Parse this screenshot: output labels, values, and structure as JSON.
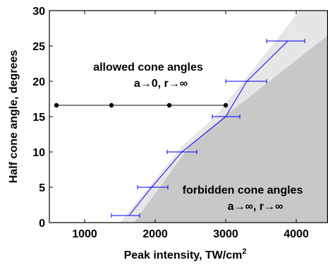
{
  "chart_data": {
    "type": "line",
    "xlabel": "Peak intensity, TW/cm",
    "xlabel_superscript": "2",
    "ylabel": "Half cone angle, degrees",
    "xlim": [
      500,
      4450
    ],
    "ylim": [
      0,
      30
    ],
    "x_ticks": [
      1000,
      2000,
      3000,
      4000
    ],
    "y_ticks": [
      0,
      5,
      10,
      15,
      20,
      25,
      30
    ],
    "x_tick_labels": [
      "1000",
      "2000",
      "3000",
      "4000"
    ],
    "y_tick_labels": [
      "0",
      "5",
      "10",
      "15",
      "20",
      "25",
      "30"
    ],
    "grid": false,
    "colors": {
      "measured": "#0000ff",
      "horizontal": "#000000",
      "light_band": "#e6e6e6",
      "dark_region": "#c8c8c8"
    },
    "series": [
      {
        "style": "blue line with horizontal error bars",
        "points": [
          {
            "x": 1630,
            "y": 1,
            "xerr": [
              1380,
              1780
            ]
          },
          {
            "x": 1950,
            "y": 5,
            "xerr": [
              1750,
              2180
            ]
          },
          {
            "x": 2380,
            "y": 10,
            "xerr": [
              2170,
              2590
            ]
          },
          {
            "x": 3000,
            "y": 15,
            "xerr": [
              2810,
              3200
            ]
          },
          {
            "x": 3300,
            "y": 20,
            "xerr": [
              3000,
              3580
            ]
          },
          {
            "x": 3880,
            "y": 25.7,
            "xerr": [
              3580,
              4120
            ]
          }
        ]
      },
      {
        "style": "black line with filled circle markers",
        "points": [
          {
            "x": 600,
            "y": 16.6
          },
          {
            "x": 1380,
            "y": 16.6
          },
          {
            "x": 2200,
            "y": 16.6
          },
          {
            "x": 3000,
            "y": 16.6
          }
        ]
      }
    ],
    "regions": {
      "light_band": [
        [
          1500,
          0
        ],
        [
          2400,
          11
        ],
        [
          2850,
          15
        ],
        [
          4050,
          30
        ],
        [
          4450,
          30
        ],
        [
          4450,
          0
        ]
      ],
      "dark_region": [
        [
          1700,
          0
        ],
        [
          2500,
          11
        ],
        [
          2980,
          15
        ],
        [
          4450,
          26.5
        ],
        [
          4450,
          0
        ]
      ]
    },
    "annotations": [
      {
        "line1": "allowed cone angles",
        "line2": "a→0, r→∞",
        "x": 1900,
        "y1": 21.5,
        "y2": 19.2
      },
      {
        "line1": "forbidden cone angles",
        "line2": "a→∞, r→∞",
        "x": 3240,
        "y1": 4.1,
        "y2": 1.8
      }
    ]
  }
}
